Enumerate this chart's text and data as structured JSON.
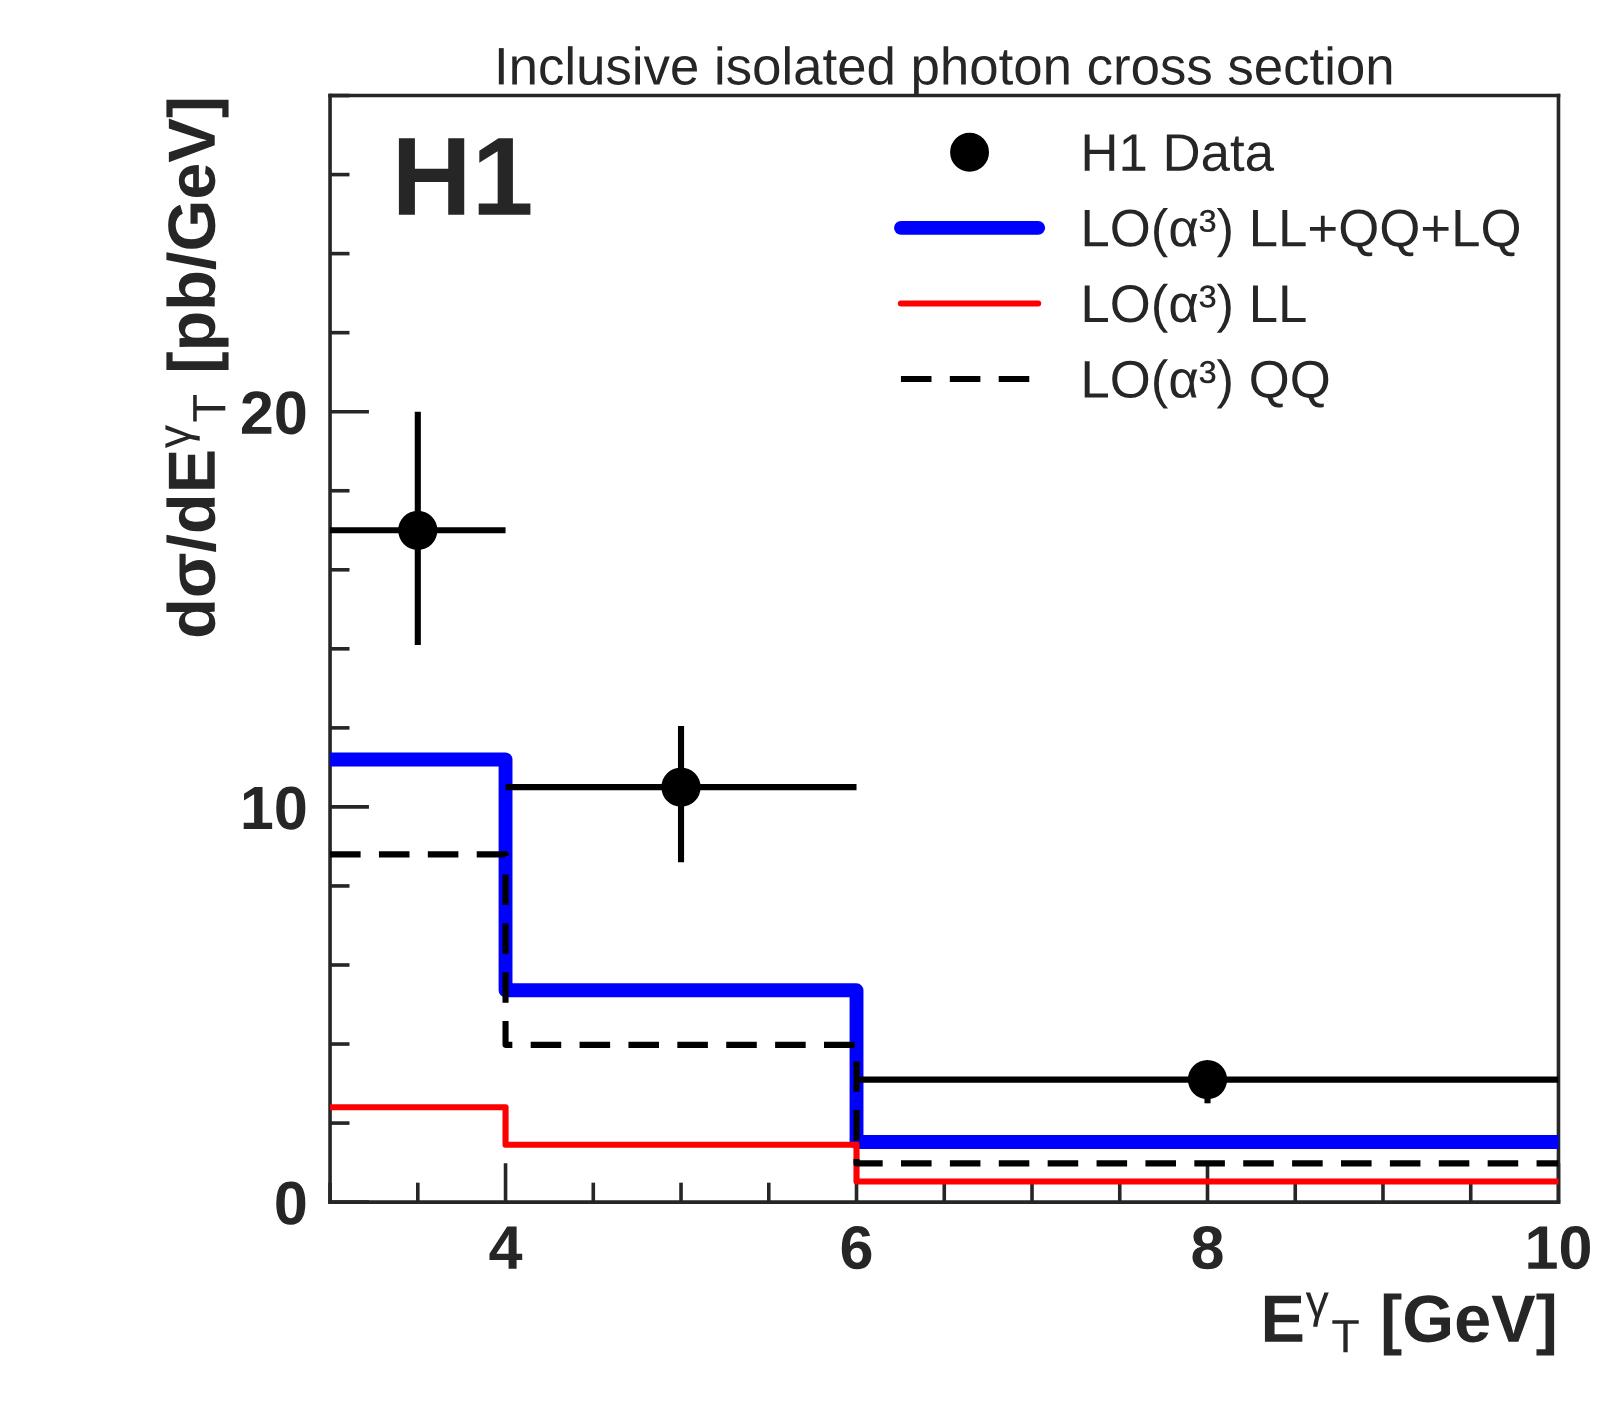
{
  "chart_data": {
    "type": "step",
    "title": "Inclusive isolated photon cross section",
    "xlabel": "E$^{γ}$$_{T}$ [GeV]",
    "ylabel": "dσ/dE$^{γ}$$_{T}$ [pb/GeV]",
    "annotations": [
      "H1"
    ],
    "xlim": [
      3,
      10
    ],
    "xticks": [
      4,
      6,
      8,
      10
    ],
    "ylim": [
      0,
      28
    ],
    "yticks": [
      0,
      10,
      20
    ],
    "grid": false,
    "legend": "top right",
    "series": [
      {
        "name": "H1 Data",
        "type": "scatter",
        "color": "#000000",
        "marker": "circle",
        "x": [
          3.5,
          5,
          8
        ],
        "values": [
          17.0,
          10.5,
          3.1
        ],
        "errors": [
          [
            14.1,
            20.0
          ],
          [
            8.6,
            12.05
          ],
          [
            2.5,
            3.4
          ]
        ],
        "xerrors": [
          [
            3,
            4
          ],
          [
            4,
            6
          ],
          [
            6,
            10
          ]
        ]
      },
      {
        "name": "LO(α³) LL+QQ+LQ",
        "color": "#0000ff",
        "line_style": "solid",
        "x": [
          3,
          4,
          6,
          10
        ],
        "values": [
          11.2,
          5.36,
          1.52,
          1.52
        ]
      },
      {
        "name": "LO(α³) LL",
        "color": "#ff0000",
        "line_style": "solid",
        "x": [
          3,
          4,
          6,
          10
        ],
        "values": [
          2.4,
          1.45,
          0.52,
          0.52
        ]
      },
      {
        "name": "LO(α³) QQ",
        "color": "#000000",
        "line_style": "dashed",
        "x": [
          3,
          4,
          6,
          10
        ],
        "values": [
          8.8,
          3.98,
          0.98,
          0.98
        ]
      }
    ]
  }
}
